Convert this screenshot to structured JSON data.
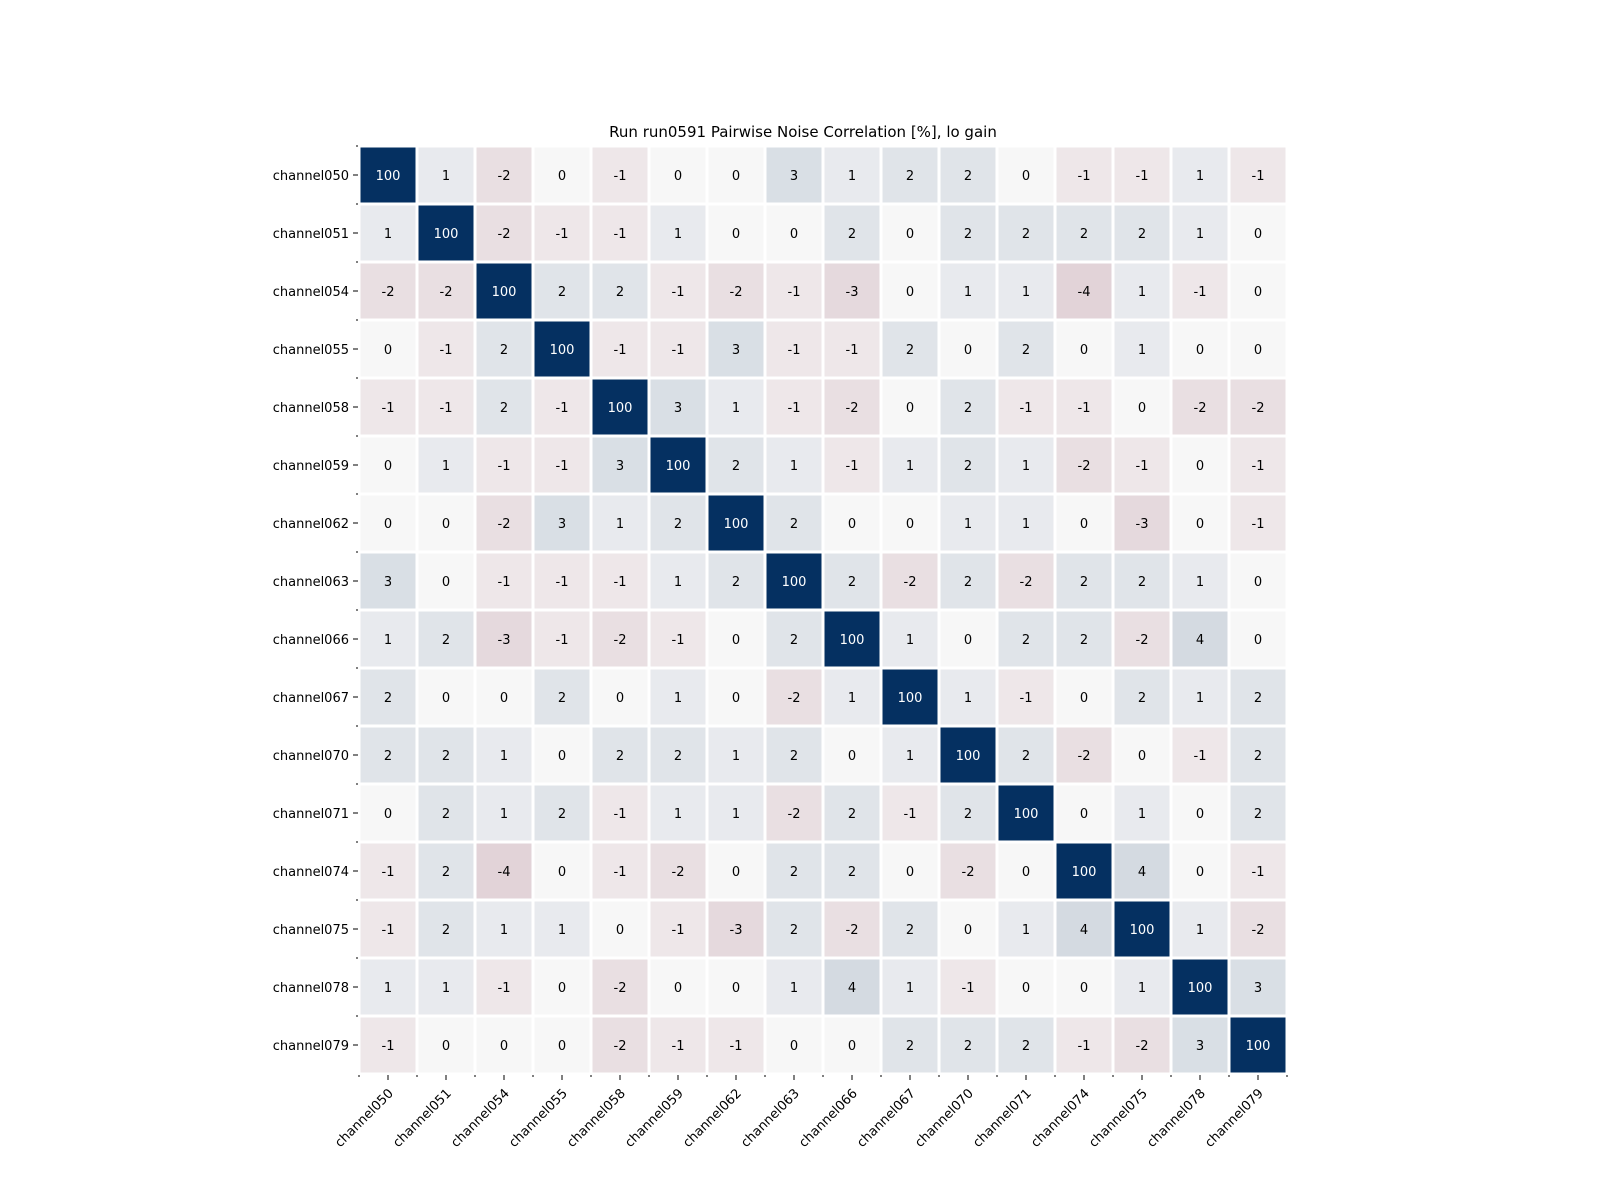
{
  "chart_data": {
    "type": "heatmap",
    "title": "Run run0591 Pairwise Noise Correlation [%], lo gain",
    "xlabel": "",
    "ylabel": "",
    "x_categories": [
      "channel050",
      "channel051",
      "channel054",
      "channel055",
      "channel058",
      "channel059",
      "channel062",
      "channel063",
      "channel066",
      "channel067",
      "channel070",
      "channel071",
      "channel074",
      "channel075",
      "channel078",
      "channel079"
    ],
    "y_categories": [
      "channel050",
      "channel051",
      "channel054",
      "channel055",
      "channel058",
      "channel059",
      "channel062",
      "channel063",
      "channel066",
      "channel067",
      "channel070",
      "channel071",
      "channel074",
      "channel075",
      "channel078",
      "channel079"
    ],
    "values": [
      [
        100,
        1,
        -2,
        0,
        -1,
        0,
        0,
        3,
        1,
        2,
        2,
        0,
        -1,
        -1,
        1,
        -1
      ],
      [
        1,
        100,
        -2,
        -1,
        -1,
        1,
        0,
        0,
        2,
        0,
        2,
        2,
        2,
        2,
        1,
        0
      ],
      [
        -2,
        -2,
        100,
        2,
        2,
        -1,
        -2,
        -1,
        -3,
        0,
        1,
        1,
        -4,
        1,
        -1,
        0
      ],
      [
        0,
        -1,
        2,
        100,
        -1,
        -1,
        3,
        -1,
        -1,
        2,
        0,
        2,
        0,
        1,
        0,
        0
      ],
      [
        -1,
        -1,
        2,
        -1,
        100,
        3,
        1,
        -1,
        -2,
        0,
        2,
        -1,
        -1,
        0,
        -2,
        -2
      ],
      [
        0,
        1,
        -1,
        -1,
        3,
        100,
        2,
        1,
        -1,
        1,
        2,
        1,
        -2,
        -1,
        0,
        -1
      ],
      [
        0,
        0,
        -2,
        3,
        1,
        2,
        100,
        2,
        0,
        0,
        1,
        1,
        0,
        -3,
        0,
        -1
      ],
      [
        3,
        0,
        -1,
        -1,
        -1,
        1,
        2,
        100,
        2,
        -2,
        2,
        -2,
        2,
        2,
        1,
        0
      ],
      [
        1,
        2,
        -3,
        -1,
        -2,
        -1,
        0,
        2,
        100,
        1,
        0,
        2,
        2,
        -2,
        4,
        0
      ],
      [
        2,
        0,
        0,
        2,
        0,
        1,
        0,
        -2,
        1,
        100,
        1,
        -1,
        0,
        2,
        1,
        2
      ],
      [
        2,
        2,
        1,
        0,
        2,
        2,
        1,
        2,
        0,
        1,
        100,
        2,
        -2,
        0,
        -1,
        2
      ],
      [
        0,
        2,
        1,
        2,
        -1,
        1,
        1,
        -2,
        2,
        -1,
        2,
        100,
        0,
        1,
        0,
        2
      ],
      [
        -1,
        2,
        -4,
        0,
        -1,
        -2,
        0,
        2,
        2,
        0,
        -2,
        0,
        100,
        4,
        0,
        -1
      ],
      [
        -1,
        2,
        1,
        1,
        0,
        -1,
        -3,
        2,
        -2,
        2,
        0,
        1,
        4,
        100,
        1,
        -2
      ],
      [
        1,
        1,
        -1,
        0,
        -2,
        0,
        0,
        1,
        4,
        1,
        -1,
        0,
        0,
        1,
        100,
        3
      ],
      [
        -1,
        0,
        0,
        0,
        -2,
        -1,
        -1,
        0,
        0,
        2,
        2,
        2,
        -1,
        -2,
        3,
        100
      ]
    ],
    "colormap": "RdBu diverging (red negative, white zero, dark blue positive)",
    "value_range": [
      -100,
      100
    ],
    "colors": {
      "max": "#053061",
      "zero": "#f7f7f7",
      "min": "#67001f",
      "grid": "#ffffff"
    },
    "annotations": "cell values shown as integers",
    "legend": "none"
  }
}
